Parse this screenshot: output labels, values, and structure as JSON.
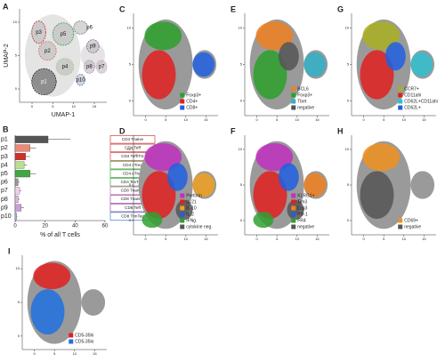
{
  "chart_data": [
    {
      "type": "umap-clusters",
      "panel": "A",
      "x_label": "UMAP-1",
      "y_label": "UMAP-2",
      "xlim": [
        -3,
        18
      ],
      "ylim": [
        -2,
        12
      ],
      "xticks": [
        0,
        5,
        10,
        15
      ],
      "yticks": [
        0,
        5,
        10
      ],
      "clusters": [
        {
          "name": "p1",
          "color": "#222222"
        },
        {
          "name": "p2",
          "color": "#e07060"
        },
        {
          "name": "p3",
          "color": "#c0302a"
        },
        {
          "name": "p4",
          "color": "#a8d080"
        },
        {
          "name": "p5",
          "color": "#3aa040"
        },
        {
          "name": "p6",
          "color": "#777777"
        },
        {
          "name": "p7",
          "color": "#e0a0d0"
        },
        {
          "name": "p8",
          "color": "#c080c0"
        },
        {
          "name": "p9",
          "color": "#9050a0"
        },
        {
          "name": "p10",
          "color": "#4a80c8"
        }
      ]
    },
    {
      "type": "bar",
      "panel": "B",
      "orientation": "horizontal",
      "x_label": "% of all T cells",
      "categories": [
        "p1",
        "p2",
        "p3",
        "p4",
        "p5",
        "p6",
        "p7",
        "p8",
        "p9",
        "p10"
      ],
      "values": [
        22,
        10,
        7,
        6,
        10,
        2,
        3,
        2,
        4,
        1
      ],
      "errors": [
        15,
        4,
        3,
        2,
        4,
        1,
        1,
        1,
        2,
        0.5
      ],
      "colors": [
        "#555555",
        "#f08878",
        "#d03028",
        "#b8e090",
        "#40a840",
        "#999999",
        "#f0d0e8",
        "#e0b8e0",
        "#c8a0d8",
        "#a0c8f0"
      ],
      "subsets": [
        "CD4 Tnaive",
        "CD4 Teff",
        "CD4 Teff/Tr1",
        "CD4 cTreg",
        "CD4 eTreg",
        "CD4 TexTreg",
        "CD8 Tnaive1",
        "CD8 Tnaive2",
        "CD8 Teff",
        "CD8 TrmTeg"
      ],
      "subset_colors": [
        "#d04040",
        "#d04040",
        "#d04040",
        "#40a040",
        "#40a040",
        "#40a040",
        "#d070b0",
        "#9050a0",
        "#9050a0",
        "#4a80c8"
      ],
      "xlim": [
        0,
        60
      ],
      "xticks": [
        0,
        20,
        40,
        60
      ]
    },
    {
      "type": "umap",
      "panel": "C",
      "xlim": [
        -3,
        18
      ],
      "ylim": [
        -2,
        12
      ],
      "xticks": [
        0,
        5,
        10,
        15
      ],
      "yticks": [
        0,
        5,
        10
      ],
      "series": [
        {
          "name": "Foxp3+",
          "color": "#2ca02c"
        },
        {
          "name": "CD4+",
          "color": "#e02020"
        },
        {
          "name": "CD8+",
          "color": "#2060e0"
        }
      ]
    },
    {
      "type": "umap",
      "panel": "E",
      "xlim": [
        -3,
        18
      ],
      "ylim": [
        -2,
        12
      ],
      "xticks": [
        0,
        5,
        10,
        15
      ],
      "yticks": [
        0,
        5,
        10
      ],
      "series": [
        {
          "name": "BCL6",
          "color": "#f08020"
        },
        {
          "name": "Foxp3+",
          "color": "#2ca02c"
        },
        {
          "name": "Tbet",
          "color": "#30b0c8"
        },
        {
          "name": "negative",
          "color": "#555555"
        }
      ]
    },
    {
      "type": "umap",
      "panel": "G",
      "xlim": [
        -3,
        18
      ],
      "ylim": [
        -2,
        12
      ],
      "xticks": [
        0,
        5,
        10,
        15
      ],
      "yticks": [
        0,
        5,
        10
      ],
      "series": [
        {
          "name": "CCR7+",
          "color": "#a8b020"
        },
        {
          "name": "CD11ahi",
          "color": "#e02020"
        },
        {
          "name": "CD62L+CD11ahi",
          "color": "#30c0d0"
        },
        {
          "name": "CD62L+",
          "color": "#2060e0"
        }
      ]
    },
    {
      "type": "umap",
      "panel": "D",
      "xlim": [
        -3,
        18
      ],
      "ylim": [
        -2,
        12
      ],
      "xticks": [
        0,
        5,
        10,
        15
      ],
      "yticks": [
        0,
        5,
        10
      ],
      "series": [
        {
          "name": "Perforin",
          "color": "#c030c0"
        },
        {
          "name": "IL-21",
          "color": "#e02020"
        },
        {
          "name": "IL-10",
          "color": "#f0a020"
        },
        {
          "name": "IL-2",
          "color": "#2060e0"
        },
        {
          "name": "IFNg",
          "color": "#30a030"
        },
        {
          "name": "cytokine neg.",
          "color": "#555555"
        }
      ]
    },
    {
      "type": "umap",
      "panel": "F",
      "xlim": [
        -3,
        18
      ],
      "ylim": [
        -2,
        12
      ],
      "xticks": [
        0,
        5,
        10,
        15
      ],
      "yticks": [
        0,
        5,
        10
      ],
      "series": [
        {
          "name": "KLRG1+",
          "color": "#c030c0"
        },
        {
          "name": "Tim3",
          "color": "#e02020"
        },
        {
          "name": "Lag3",
          "color": "#f08020"
        },
        {
          "name": "PD-1",
          "color": "#2060e0"
        },
        {
          "name": "FR4",
          "color": "#30a030"
        },
        {
          "name": "negative",
          "color": "#555555"
        }
      ]
    },
    {
      "type": "umap",
      "panel": "H",
      "xlim": [
        -3,
        18
      ],
      "ylim": [
        -2,
        12
      ],
      "xticks": [
        0,
        5,
        10,
        15
      ],
      "yticks": [
        0,
        5,
        10
      ],
      "series": [
        {
          "name": "CD69+",
          "color": "#f09020"
        },
        {
          "name": "negative",
          "color": "#555555"
        }
      ]
    },
    {
      "type": "umap",
      "panel": "I",
      "xlim": [
        -3,
        18
      ],
      "ylim": [
        -2,
        12
      ],
      "xticks": [
        0,
        5,
        10,
        15
      ],
      "yticks": [
        0,
        5,
        10
      ],
      "series": [
        {
          "name": "CD5-35hi",
          "color": "#e02020"
        },
        {
          "name": "CD5-35lo",
          "color": "#2070e0"
        }
      ]
    }
  ]
}
